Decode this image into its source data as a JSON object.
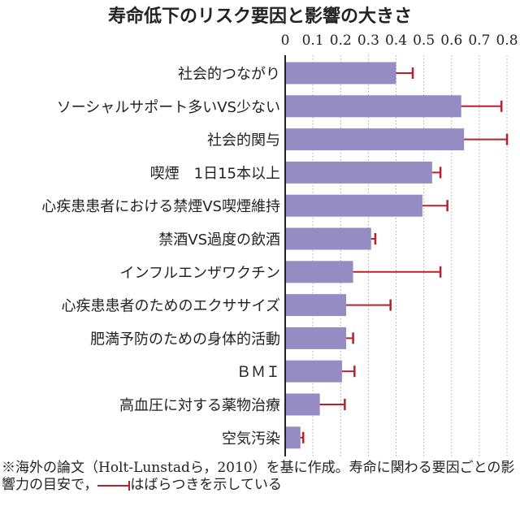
{
  "chart_data": {
    "type": "bar",
    "orientation": "horizontal",
    "title": "寿命低下のリスク要因と影響の大きさ",
    "xlim": [
      0,
      0.8
    ],
    "ticks": [
      "0",
      "0.1",
      "0.2",
      "0.3",
      "0.4",
      "0.5",
      "0.6",
      "0.7",
      "0.8"
    ],
    "categories": [
      "社会的つながり",
      "ソーシャルサポート多いVS少ない",
      "社会的関与",
      "喫煙　1日15本以上",
      "心疾患患者における禁煙VS喫煙維持",
      "禁酒VS過度の飲酒",
      "インフルエンザワクチン",
      "心疾患患者のためのエクササイズ",
      "肥満予防のための身体的活動",
      "ＢＭＩ",
      "高血圧に対する薬物治療",
      "空気汚染"
    ],
    "values": [
      0.4,
      0.635,
      0.645,
      0.53,
      0.495,
      0.31,
      0.245,
      0.22,
      0.22,
      0.205,
      0.125,
      0.055
    ],
    "error_upper": [
      0.46,
      0.78,
      0.8,
      0.56,
      0.585,
      0.325,
      0.56,
      0.38,
      0.245,
      0.25,
      0.215,
      0.065
    ],
    "grid": true,
    "colors": {
      "bar": "#968cc4",
      "error": "#b8202e"
    }
  },
  "footnote": {
    "part1": "※海外の論文（Holt-Lunstadら，2010）を基に作成。寿命に関わる要因ごとの影響力の目安で，",
    "part2": "はばらつきを示している"
  }
}
